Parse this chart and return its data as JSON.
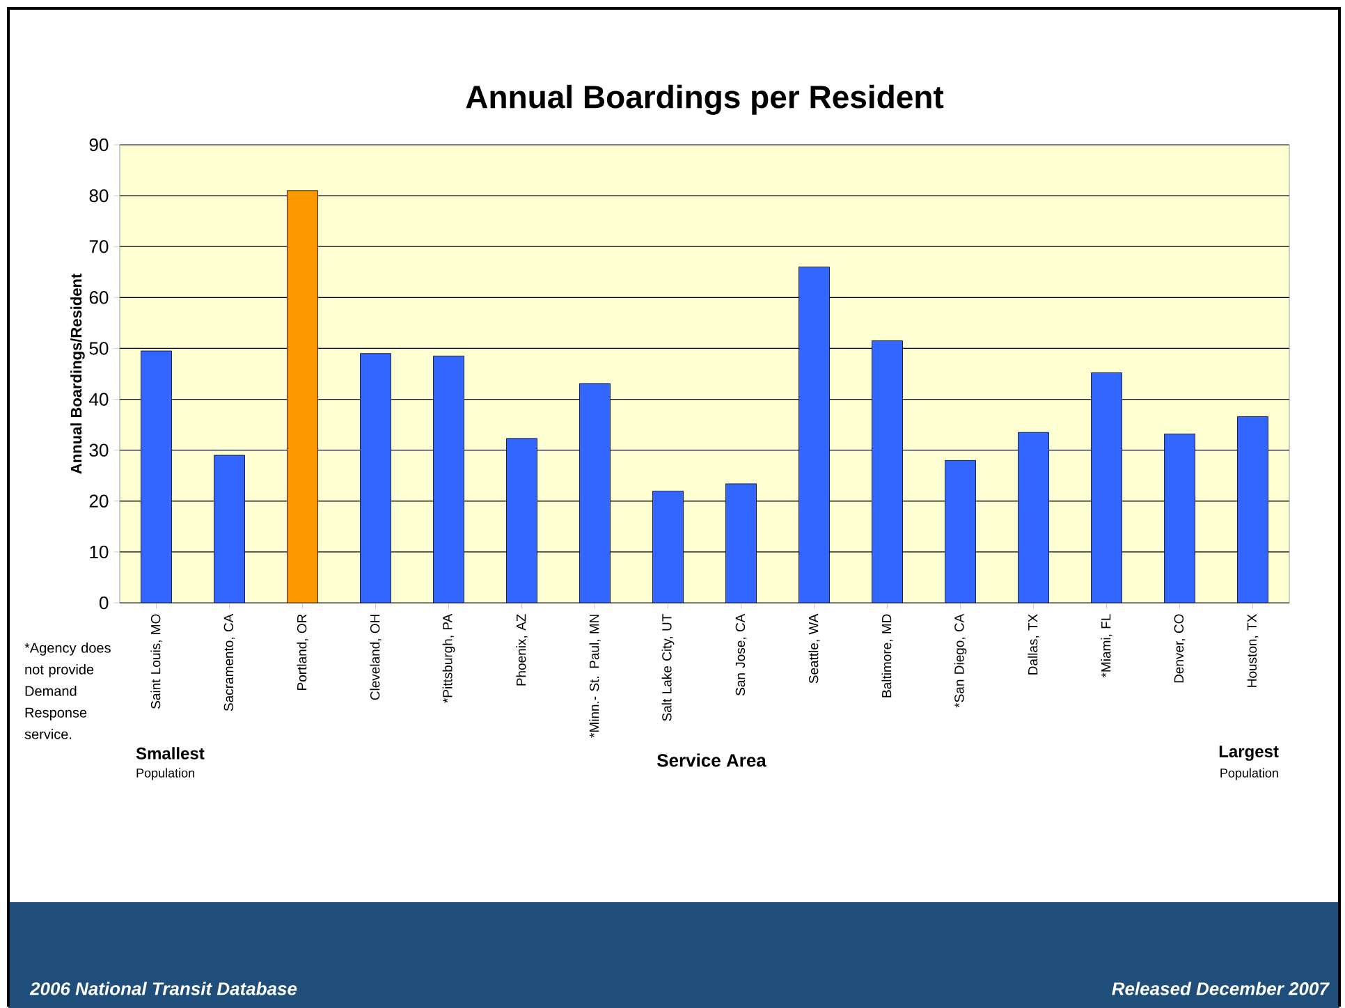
{
  "chart_data": {
    "type": "bar",
    "title": "Annual Boardings per Resident",
    "xlabel": "Service Area",
    "ylabel": "Annual Boardings/Resident",
    "categories": [
      "Saint Louis, MO",
      "Sacramento, CA",
      "Portland, OR",
      "Cleveland, OH",
      "*Pittsburgh, PA",
      "Phoenix, AZ",
      "*Minn.- St. Paul, MN",
      "Salt Lake City, UT",
      "San Jose, CA",
      "Seattle, WA",
      "Baltimore, MD",
      "*San Diego, CA",
      "Dallas, TX",
      "*Miami, FL",
      "Denver, CO",
      "Houston, TX"
    ],
    "values": [
      49.5,
      29.0,
      81.0,
      49.0,
      48.5,
      32.3,
      43.1,
      22.0,
      23.4,
      66.0,
      51.5,
      28.0,
      33.5,
      45.2,
      33.2,
      36.6
    ],
    "colors": [
      "#3366ff",
      "#3366ff",
      "#ff9900",
      "#3366ff",
      "#3366ff",
      "#3366ff",
      "#3366ff",
      "#3366ff",
      "#3366ff",
      "#3366ff",
      "#3366ff",
      "#3366ff",
      "#3366ff",
      "#3366ff",
      "#3366ff",
      "#3366ff"
    ],
    "ylim": [
      0,
      90
    ],
    "yticks": [
      0,
      10,
      20,
      30,
      40,
      50,
      60,
      70,
      80,
      90
    ],
    "grid": "y",
    "annotations": [
      "*Agency does not provide Demand Response service.",
      "Smallest",
      "Population",
      "Largest",
      "Population",
      "2006 National Transit Database",
      "Released December 2007"
    ]
  }
}
